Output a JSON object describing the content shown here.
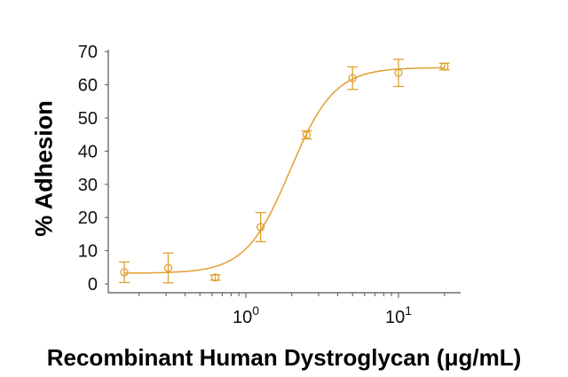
{
  "chart_data": {
    "type": "scatter",
    "title": "",
    "xlabel": "Recombinant Human Dystroglycan (μg/mL)",
    "ylabel": "% Adhesion",
    "x_scale": "log",
    "xlim": [
      0.12,
      23
    ],
    "ylim": [
      -2,
      70
    ],
    "x_ticks": [
      {
        "value": 1,
        "label": "10",
        "exp": "0"
      },
      {
        "value": 10,
        "label": "10",
        "exp": "1"
      }
    ],
    "y_ticks": [
      0,
      10,
      20,
      30,
      40,
      50,
      60,
      70
    ],
    "grid": false,
    "legend": null,
    "color": "#E0A030",
    "series": [
      {
        "name": "% Adhesion",
        "marker": "open-circle",
        "x": [
          0.16,
          0.31,
          0.63,
          1.25,
          2.5,
          5,
          10,
          20
        ],
        "y": [
          3.5,
          4.8,
          1.9,
          17.1,
          44.9,
          62.0,
          63.6,
          65.5
        ],
        "error": [
          3.1,
          4.5,
          0.8,
          4.4,
          1.2,
          3.4,
          4.1,
          1.0
        ]
      }
    ],
    "fit": {
      "type": "4PL sigmoid",
      "bottom": 3.2,
      "top": 65.2,
      "ec50": 1.95,
      "hill": 3.0
    }
  }
}
